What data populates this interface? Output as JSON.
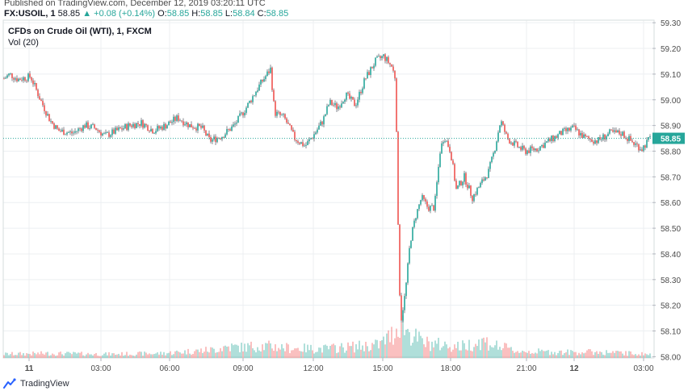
{
  "header": {
    "published": "Published on TradingView.com, December 12, 2019 03:20:11 UTC",
    "symbol": "FX:USOIL, 1",
    "last": "58.85",
    "change": "+0.08 (+0.14%)",
    "o_label": "O:",
    "o_value": "58.85",
    "h_label": "H:",
    "h_value": "58.85",
    "l_label": "L:",
    "l_value": "58.84",
    "c_label": "C:",
    "c_value": "58.85"
  },
  "legend": {
    "title": "CFDs on Crude Oil (WTI), 1, FXCM",
    "volume": "Vol (20)"
  },
  "footer": {
    "brand": "TradingView"
  },
  "colors": {
    "up": "#26a69a",
    "down": "#ef5350",
    "price_line": "#26a69a",
    "grid": "#eceff2"
  },
  "chart_data": {
    "type": "candlestick",
    "title": "CFDs on Crude Oil (WTI), 1, FXCM",
    "last_price_label": "58.85",
    "y_ticks": [
      "59.30",
      "59.20",
      "59.10",
      "59.00",
      "58.90",
      "58.80",
      "58.70",
      "58.60",
      "58.50",
      "58.40",
      "58.30",
      "58.20",
      "58.10",
      "58.00"
    ],
    "y_range": [
      57.995,
      59.31
    ],
    "x_ticks": [
      "11",
      "03:00",
      "06:00",
      "09:00",
      "12:00",
      "15:00",
      "18:00",
      "21:00",
      "12",
      "03:00"
    ],
    "bold_x_ticks": [
      "11",
      "12"
    ],
    "price_path": [
      [
        0,
        59.07
      ],
      [
        12,
        59.1
      ],
      [
        22,
        59.08
      ],
      [
        38,
        59.09
      ],
      [
        50,
        59.0
      ],
      [
        62,
        58.92
      ],
      [
        72,
        58.88
      ],
      [
        90,
        58.87
      ],
      [
        105,
        58.9
      ],
      [
        118,
        58.89
      ],
      [
        130,
        58.86
      ],
      [
        145,
        58.88
      ],
      [
        160,
        58.9
      ],
      [
        175,
        58.91
      ],
      [
        190,
        58.88
      ],
      [
        205,
        58.9
      ],
      [
        220,
        58.93
      ],
      [
        235,
        58.9
      ],
      [
        250,
        58.89
      ],
      [
        260,
        58.84
      ],
      [
        275,
        58.86
      ],
      [
        290,
        58.9
      ],
      [
        305,
        58.97
      ],
      [
        320,
        59.05
      ],
      [
        335,
        59.12
      ],
      [
        340,
        58.95
      ],
      [
        352,
        58.93
      ],
      [
        365,
        58.85
      ],
      [
        378,
        58.82
      ],
      [
        390,
        58.87
      ],
      [
        400,
        58.92
      ],
      [
        408,
        58.99
      ],
      [
        418,
        58.97
      ],
      [
        428,
        59.02
      ],
      [
        440,
        58.98
      ],
      [
        452,
        59.08
      ],
      [
        465,
        59.15
      ],
      [
        475,
        59.17
      ],
      [
        485,
        59.13
      ],
      [
        490,
        59.08
      ],
      [
        492,
        58.7
      ],
      [
        494,
        58.3
      ],
      [
        497,
        58.15
      ],
      [
        502,
        58.25
      ],
      [
        508,
        58.45
      ],
      [
        515,
        58.55
      ],
      [
        522,
        58.62
      ],
      [
        530,
        58.58
      ],
      [
        538,
        58.58
      ],
      [
        545,
        58.8
      ],
      [
        550,
        58.86
      ],
      [
        558,
        58.8
      ],
      [
        565,
        58.65
      ],
      [
        575,
        58.7
      ],
      [
        585,
        58.62
      ],
      [
        595,
        58.67
      ],
      [
        605,
        58.72
      ],
      [
        612,
        58.8
      ],
      [
        620,
        58.92
      ],
      [
        628,
        58.85
      ],
      [
        640,
        58.82
      ],
      [
        650,
        58.8
      ],
      [
        665,
        58.81
      ],
      [
        680,
        58.84
      ],
      [
        695,
        58.87
      ],
      [
        710,
        58.89
      ],
      [
        725,
        58.85
      ],
      [
        740,
        58.84
      ],
      [
        755,
        58.87
      ],
      [
        770,
        58.87
      ],
      [
        785,
        58.83
      ],
      [
        795,
        58.81
      ],
      [
        805,
        58.85
      ]
    ],
    "volume_path": [
      [
        0,
        0.1
      ],
      [
        60,
        0.12
      ],
      [
        130,
        0.1
      ],
      [
        200,
        0.12
      ],
      [
        265,
        0.22
      ],
      [
        280,
        0.3
      ],
      [
        300,
        0.28
      ],
      [
        320,
        0.32
      ],
      [
        340,
        0.3
      ],
      [
        360,
        0.26
      ],
      [
        400,
        0.24
      ],
      [
        440,
        0.3
      ],
      [
        470,
        0.35
      ],
      [
        490,
        0.7
      ],
      [
        495,
        1.0
      ],
      [
        500,
        0.85
      ],
      [
        510,
        0.6
      ],
      [
        525,
        0.4
      ],
      [
        545,
        0.35
      ],
      [
        570,
        0.3
      ],
      [
        600,
        0.45
      ],
      [
        610,
        0.35
      ],
      [
        640,
        0.18
      ],
      [
        700,
        0.15
      ],
      [
        740,
        0.16
      ],
      [
        780,
        0.12
      ],
      [
        805,
        0.1
      ]
    ]
  }
}
